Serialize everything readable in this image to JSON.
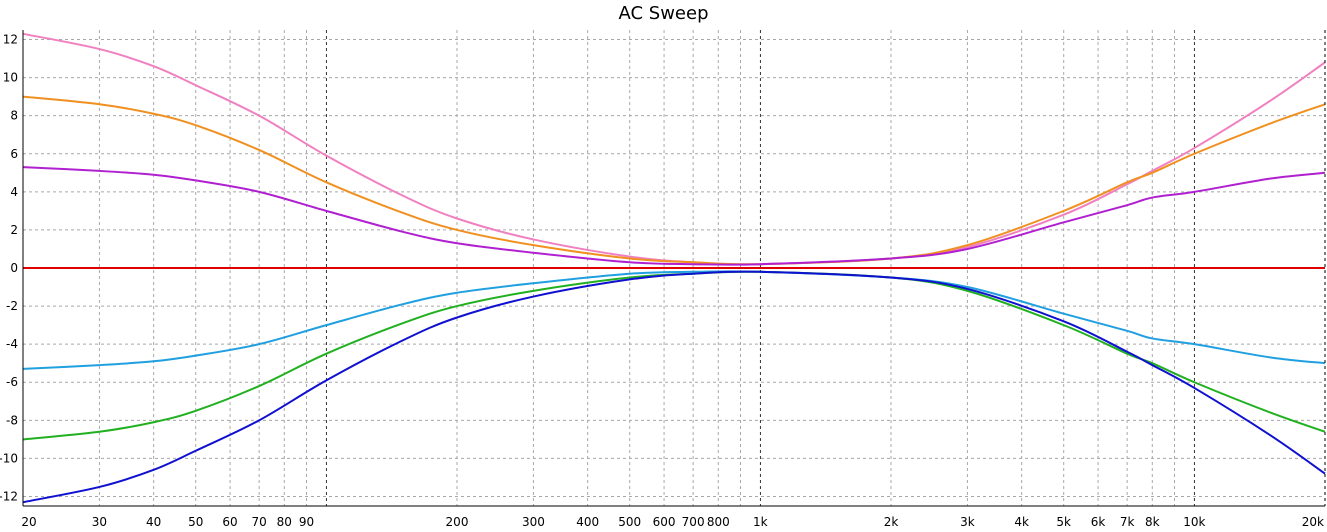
{
  "chart_data": {
    "type": "line",
    "title": "AC Sweep",
    "xlabel": "",
    "ylabel": "",
    "xscale": "log",
    "xlim": [
      20,
      20000
    ],
    "ylim": [
      -12.5,
      12.5
    ],
    "grid": true,
    "y_ticks": [
      12,
      10,
      8,
      6,
      4,
      2,
      0,
      -2,
      -4,
      -6,
      -8,
      -10,
      -12
    ],
    "y_tick_labels": [
      "12",
      "10",
      "8",
      "6",
      "4",
      "2",
      "0",
      "-2",
      "-4",
      "-6",
      "-8",
      "-10",
      "-12"
    ],
    "x_ticks": [
      20,
      30,
      40,
      50,
      60,
      70,
      80,
      90,
      200,
      300,
      400,
      500,
      600,
      700,
      800,
      1000,
      2000,
      3000,
      4000,
      5000,
      6000,
      7000,
      8000,
      10000,
      20000
    ],
    "x_tick_labels": [
      "20",
      "30",
      "40",
      "50",
      "60",
      "70",
      "80",
      "90",
      "200",
      "300",
      "400",
      "500",
      "600",
      "700",
      "800",
      "1k",
      "2k",
      "3k",
      "4k",
      "5k",
      "6k",
      "7k",
      "8k",
      "10k",
      "20k"
    ],
    "x": [
      20,
      30,
      40,
      50,
      70,
      100,
      150,
      200,
      300,
      500,
      700,
      1000,
      2000,
      3000,
      5000,
      7000,
      8000,
      10000,
      15000,
      20000
    ],
    "series": [
      {
        "name": "pink",
        "color": "#f080c0",
        "values": [
          12.3,
          11.5,
          10.6,
          9.6,
          8.0,
          5.9,
          3.8,
          2.6,
          1.5,
          0.6,
          0.3,
          0.2,
          0.5,
          1.1,
          2.8,
          4.4,
          5.1,
          6.3,
          8.8,
          10.8
        ]
      },
      {
        "name": "orange",
        "color": "#f09020",
        "values": [
          9.0,
          8.6,
          8.1,
          7.5,
          6.2,
          4.5,
          2.9,
          2.0,
          1.2,
          0.5,
          0.3,
          0.2,
          0.5,
          1.2,
          3.0,
          4.5,
          5.0,
          6.0,
          7.6,
          8.6
        ]
      },
      {
        "name": "purple",
        "color": "#b020d0",
        "values": [
          5.3,
          5.1,
          4.9,
          4.6,
          4.0,
          3.0,
          1.9,
          1.3,
          0.8,
          0.3,
          0.2,
          0.2,
          0.5,
          1.0,
          2.4,
          3.3,
          3.7,
          4.0,
          4.7,
          5.0
        ]
      },
      {
        "name": "red",
        "color": "#e00000",
        "values": [
          0,
          0,
          0,
          0,
          0,
          0,
          0,
          0,
          0,
          0,
          0,
          0,
          0,
          0,
          0,
          0,
          0,
          0,
          0,
          0
        ]
      },
      {
        "name": "light-blue",
        "color": "#20a0e0",
        "values": [
          -5.3,
          -5.1,
          -4.9,
          -4.6,
          -4.0,
          -3.0,
          -1.9,
          -1.3,
          -0.8,
          -0.3,
          -0.2,
          -0.2,
          -0.5,
          -1.0,
          -2.4,
          -3.3,
          -3.7,
          -4.0,
          -4.7,
          -5.0
        ]
      },
      {
        "name": "green",
        "color": "#20b020",
        "values": [
          -9.0,
          -8.6,
          -8.1,
          -7.5,
          -6.2,
          -4.5,
          -2.9,
          -2.0,
          -1.2,
          -0.5,
          -0.3,
          -0.2,
          -0.5,
          -1.2,
          -3.0,
          -4.5,
          -5.0,
          -6.0,
          -7.6,
          -8.6
        ]
      },
      {
        "name": "dark-blue",
        "color": "#1010d0",
        "values": [
          -12.3,
          -11.5,
          -10.6,
          -9.6,
          -8.0,
          -5.9,
          -3.8,
          -2.6,
          -1.5,
          -0.6,
          -0.3,
          -0.2,
          -0.5,
          -1.1,
          -2.8,
          -4.4,
          -5.1,
          -6.3,
          -8.8,
          -10.8
        ]
      }
    ]
  }
}
